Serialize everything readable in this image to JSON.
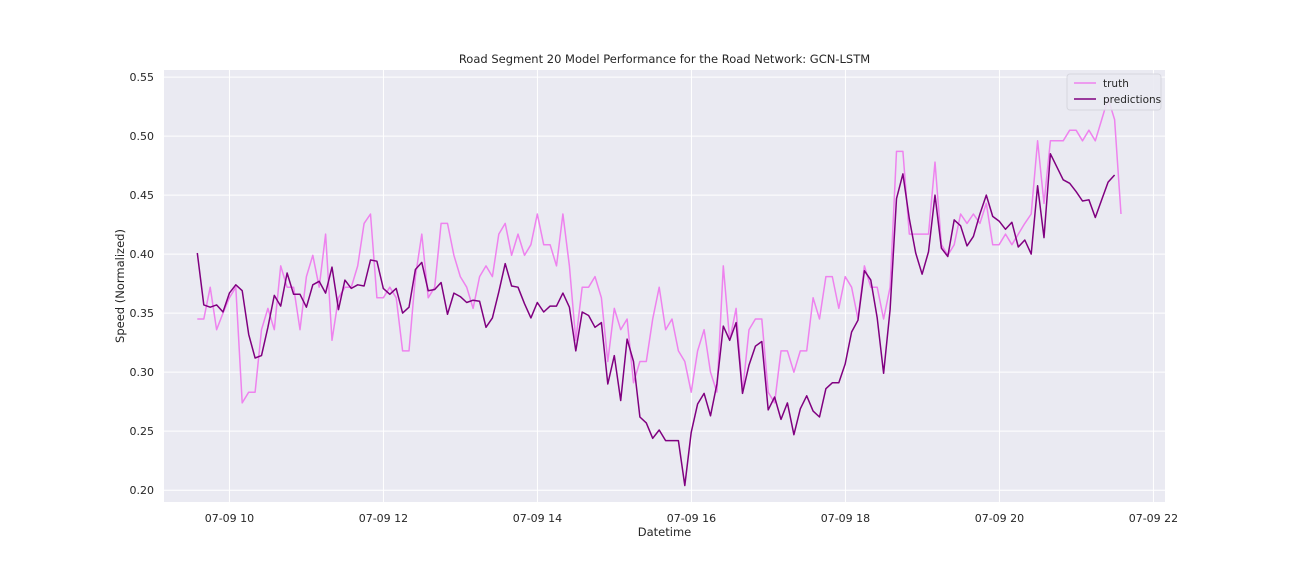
{
  "chart_data": {
    "type": "line",
    "title": "Road Segment 20 Model Performance for the Road Network: GCN-LSTM",
    "xlabel": "Datetime",
    "ylabel": "Speed (Normalized)",
    "x_ticks": [
      "07-09 10",
      "07-09 12",
      "07-09 14",
      "07-09 16",
      "07-09 18",
      "07-09 20",
      "07-09 22"
    ],
    "y_ticks": [
      "0.20",
      "0.25",
      "0.30",
      "0.35",
      "0.40",
      "0.45",
      "0.50",
      "0.55"
    ],
    "xlim_hours": [
      9.15,
      22.15
    ],
    "ylim": [
      0.19,
      0.556
    ],
    "x_start_hour": 9.583,
    "x_step_hours": 0.0833,
    "grid": true,
    "legend_position": "top-right",
    "background": "#eaeaf2",
    "series": [
      {
        "name": "truth",
        "color": "#ee82ee",
        "values": [
          0.345,
          0.345,
          0.372,
          0.336,
          0.35,
          0.363,
          0.372,
          0.274,
          0.283,
          0.283,
          0.336,
          0.354,
          0.336,
          0.39,
          0.372,
          0.372,
          0.336,
          0.381,
          0.399,
          0.372,
          0.417,
          0.327,
          0.363,
          0.372,
          0.372,
          0.39,
          0.426,
          0.434,
          0.363,
          0.363,
          0.372,
          0.363,
          0.318,
          0.318,
          0.381,
          0.417,
          0.363,
          0.372,
          0.426,
          0.426,
          0.399,
          0.381,
          0.372,
          0.354,
          0.381,
          0.39,
          0.381,
          0.417,
          0.426,
          0.399,
          0.417,
          0.399,
          0.408,
          0.434,
          0.408,
          0.408,
          0.39,
          0.434,
          0.39,
          0.327,
          0.372,
          0.372,
          0.381,
          0.363,
          0.309,
          0.354,
          0.336,
          0.345,
          0.291,
          0.309,
          0.309,
          0.345,
          0.372,
          0.336,
          0.345,
          0.318,
          0.309,
          0.283,
          0.318,
          0.336,
          0.3,
          0.283,
          0.39,
          0.327,
          0.354,
          0.283,
          0.336,
          0.345,
          0.345,
          0.283,
          0.274,
          0.318,
          0.318,
          0.3,
          0.318,
          0.318,
          0.363,
          0.345,
          0.381,
          0.381,
          0.354,
          0.381,
          0.372,
          0.345,
          0.39,
          0.372,
          0.372,
          0.345,
          0.372,
          0.487,
          0.487,
          0.417,
          0.417,
          0.417,
          0.417,
          0.478,
          0.408,
          0.399,
          0.408,
          0.434,
          0.426,
          0.434,
          0.426,
          0.443,
          0.408,
          0.408,
          0.417,
          0.408,
          0.417,
          0.426,
          0.434,
          0.496,
          0.443,
          0.496,
          0.496,
          0.496,
          0.505,
          0.505,
          0.496,
          0.505,
          0.496,
          0.514,
          0.532,
          0.514,
          0.434
        ]
      },
      {
        "name": "predictions",
        "color": "#800080",
        "values": [
          0.401,
          0.357,
          0.355,
          0.357,
          0.351,
          0.367,
          0.374,
          0.369,
          0.332,
          0.312,
          0.314,
          0.338,
          0.365,
          0.356,
          0.384,
          0.366,
          0.366,
          0.355,
          0.374,
          0.377,
          0.367,
          0.389,
          0.353,
          0.378,
          0.371,
          0.374,
          0.373,
          0.395,
          0.394,
          0.371,
          0.366,
          0.371,
          0.35,
          0.355,
          0.387,
          0.393,
          0.369,
          0.37,
          0.376,
          0.349,
          0.367,
          0.364,
          0.359,
          0.361,
          0.36,
          0.338,
          0.346,
          0.368,
          0.392,
          0.373,
          0.372,
          0.358,
          0.346,
          0.359,
          0.351,
          0.356,
          0.356,
          0.367,
          0.355,
          0.318,
          0.351,
          0.348,
          0.338,
          0.342,
          0.29,
          0.314,
          0.276,
          0.328,
          0.309,
          0.262,
          0.257,
          0.244,
          0.251,
          0.242,
          0.242,
          0.242,
          0.204,
          0.249,
          0.273,
          0.282,
          0.263,
          0.29,
          0.339,
          0.327,
          0.342,
          0.282,
          0.306,
          0.322,
          0.326,
          0.268,
          0.279,
          0.26,
          0.274,
          0.247,
          0.269,
          0.28,
          0.267,
          0.262,
          0.286,
          0.291,
          0.291,
          0.307,
          0.334,
          0.344,
          0.386,
          0.378,
          0.346,
          0.299,
          0.353,
          0.447,
          0.468,
          0.43,
          0.401,
          0.383,
          0.402,
          0.45,
          0.405,
          0.398,
          0.429,
          0.424,
          0.407,
          0.415,
          0.434,
          0.45,
          0.432,
          0.428,
          0.421,
          0.427,
          0.406,
          0.412,
          0.4,
          0.458,
          0.414,
          0.485,
          0.474,
          0.463,
          0.46,
          0.453,
          0.445,
          0.446,
          0.431,
          0.446,
          0.461,
          0.467
        ]
      }
    ]
  }
}
